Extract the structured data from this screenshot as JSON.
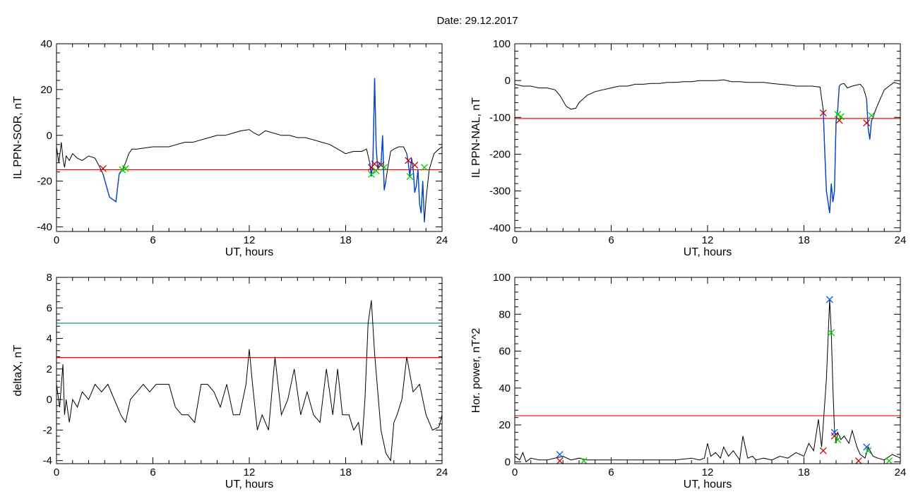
{
  "figure_title": "Date:  29.12.2017",
  "colors": {
    "trace": "#000000",
    "threshold_red": "#ff0000",
    "threshold_teal": "#008b8b",
    "highlight_blue": "#0044cc",
    "marker_red": "#cc0000",
    "marker_green": "#00cc00",
    "marker_blue": "#0055ff"
  },
  "chart_data": [
    {
      "id": "ppn_sor",
      "type": "line",
      "xlabel": "UT, hours",
      "ylabel": "IL PPN-SOR, nT",
      "xlim": [
        0,
        24
      ],
      "ylim": [
        -42,
        40
      ],
      "xticks": [
        0,
        6,
        12,
        18,
        24
      ],
      "yticks": [
        -40,
        -20,
        0,
        20,
        40
      ],
      "threshold": -15,
      "series": [
        {
          "x": [
            0,
            0.15,
            0.3,
            0.4,
            0.5,
            0.6,
            0.8,
            1.0,
            1.3,
            1.6,
            2.0,
            2.4,
            2.7,
            2.9,
            3.1,
            3.3,
            3.5,
            3.7,
            3.9,
            4.1,
            4.3,
            4.5,
            4.7,
            5.0,
            5.5,
            6.0,
            6.5,
            7.0,
            7.5,
            8.0,
            8.5,
            9.0,
            9.5,
            10.0,
            10.5,
            11.0,
            11.5,
            12.0,
            12.3,
            12.6,
            13.0,
            13.5,
            14.0,
            14.5,
            15.0,
            15.5,
            16.0,
            16.5,
            17.0,
            17.5,
            18.0,
            18.5,
            19.0,
            19.3,
            19.5,
            19.6,
            19.7,
            19.8,
            19.9,
            20.0,
            20.1,
            20.2,
            20.3,
            20.4,
            20.5,
            20.6,
            20.8,
            21.0,
            21.3,
            21.6,
            21.8,
            21.9,
            22.0,
            22.1,
            22.2,
            22.3,
            22.4,
            22.5,
            22.6,
            22.7,
            22.8,
            22.9,
            23.0,
            23.2,
            23.5,
            23.8,
            24.0
          ],
          "y": [
            -5,
            -12,
            -3,
            -10,
            -14,
            -9,
            -11,
            -8,
            -10,
            -11,
            -9,
            -10,
            -14,
            -17,
            -22,
            -27,
            -28,
            -29,
            -17,
            -15,
            -12,
            -8,
            -6,
            -6,
            -5.5,
            -5,
            -5,
            -5,
            -4,
            -3,
            -3,
            -2,
            -1,
            0,
            0,
            1,
            2,
            2.5,
            1,
            0,
            2,
            1,
            0,
            0,
            -1,
            -1,
            -2,
            -3,
            -4,
            -6,
            -8,
            -7,
            -7,
            -6,
            -12,
            -18,
            -10,
            25,
            -5,
            -15,
            -12,
            -13,
            0,
            -24,
            -20,
            -15,
            -7,
            -6,
            -5,
            -5,
            -8,
            -12,
            -18,
            -10,
            -14,
            -25,
            -22,
            -15,
            -30,
            -34,
            -20,
            -38,
            -28,
            -15,
            -8,
            -6,
            -5
          ]
        }
      ],
      "highlight_ranges": [
        [
          2.8,
          4.2
        ],
        [
          19.4,
          20.5
        ],
        [
          21.8,
          22.9
        ]
      ],
      "markers_red": [
        [
          2.9,
          -14.5
        ],
        [
          19.6,
          -14
        ],
        [
          19.8,
          -12.5
        ],
        [
          20.2,
          -13
        ],
        [
          21.9,
          -11
        ],
        [
          22.3,
          -13
        ]
      ],
      "markers_green": [
        [
          4.1,
          -15
        ],
        [
          4.3,
          -14.5
        ],
        [
          19.6,
          -17
        ],
        [
          19.9,
          -15.5
        ],
        [
          20.4,
          -14
        ],
        [
          22.0,
          -18
        ],
        [
          22.9,
          -14
        ]
      ]
    },
    {
      "id": "ppn_nal",
      "type": "line",
      "xlabel": "UT, hours",
      "ylabel": "IL PPN-NAL, nT",
      "xlim": [
        0,
        24
      ],
      "ylim": [
        -410,
        100
      ],
      "xticks": [
        0,
        6,
        12,
        18,
        24
      ],
      "yticks": [
        -400,
        -300,
        -200,
        -100,
        0,
        100
      ],
      "threshold": -103,
      "series": [
        {
          "x": [
            0,
            0.5,
            1.0,
            1.5,
            2.0,
            2.5,
            2.8,
            3.0,
            3.2,
            3.5,
            3.8,
            4.0,
            4.5,
            5.0,
            5.5,
            6.0,
            6.5,
            7.0,
            7.5,
            8.0,
            8.5,
            9.0,
            9.5,
            10.0,
            10.5,
            11.0,
            11.5,
            12.0,
            12.5,
            13.0,
            13.5,
            14.0,
            14.5,
            15.0,
            15.5,
            16.0,
            16.5,
            17.0,
            17.5,
            18.0,
            18.5,
            19.0,
            19.2,
            19.3,
            19.4,
            19.5,
            19.6,
            19.7,
            19.8,
            19.9,
            20.0,
            20.1,
            20.2,
            20.3,
            20.5,
            20.7,
            21.0,
            21.3,
            21.5,
            21.7,
            21.9,
            22.0,
            22.1,
            22.2,
            22.3,
            22.5,
            22.8,
            23.0,
            23.3,
            23.6,
            24.0
          ],
          "y": [
            -10,
            -15,
            -15,
            -20,
            -20,
            -25,
            -40,
            -55,
            -70,
            -78,
            -75,
            -60,
            -40,
            -30,
            -25,
            -20,
            -15,
            -15,
            -10,
            -10,
            -8,
            -8,
            -5,
            -5,
            -3,
            -3,
            0,
            0,
            0,
            2,
            -3,
            -3,
            -5,
            -5,
            -5,
            -8,
            -10,
            -12,
            -15,
            -15,
            -15,
            -18,
            -80,
            -200,
            -300,
            -330,
            -360,
            -280,
            -330,
            -300,
            -110,
            -80,
            -15,
            -10,
            -8,
            -20,
            -15,
            -12,
            -10,
            -20,
            -50,
            -130,
            -160,
            -110,
            -100,
            -75,
            -45,
            -25,
            -15,
            -5,
            -10
          ]
        }
      ],
      "highlight_ranges": [
        [
          19.2,
          20.2
        ],
        [
          21.9,
          22.3
        ]
      ],
      "markers_red": [
        [
          19.2,
          -88
        ],
        [
          20.2,
          -108
        ],
        [
          21.9,
          -115
        ]
      ],
      "markers_green": [
        [
          20.1,
          -92
        ],
        [
          20.3,
          -98
        ],
        [
          22.2,
          -95
        ]
      ]
    },
    {
      "id": "deltax",
      "type": "line",
      "xlabel": "UT, hours",
      "ylabel": "deltaX, nT",
      "xlim": [
        0,
        24
      ],
      "ylim": [
        -4.2,
        8
      ],
      "xticks": [
        0,
        6,
        12,
        18,
        24
      ],
      "yticks": [
        -4,
        -2,
        0,
        2,
        4,
        6,
        8
      ],
      "threshold_high": 5,
      "threshold": 2.75,
      "series": [
        {
          "x": [
            0,
            0.2,
            0.4,
            0.5,
            0.6,
            0.8,
            1.0,
            1.3,
            1.6,
            2.0,
            2.4,
            2.8,
            3.2,
            3.6,
            4.0,
            4.3,
            4.6,
            5.0,
            5.4,
            5.8,
            6.2,
            6.6,
            7.0,
            7.4,
            7.8,
            8.2,
            8.6,
            9.0,
            9.4,
            9.8,
            10.2,
            10.6,
            11.0,
            11.4,
            11.8,
            12.0,
            12.2,
            12.5,
            12.8,
            13.2,
            13.6,
            14.0,
            14.4,
            14.8,
            15.2,
            15.6,
            16.0,
            16.4,
            16.8,
            17.2,
            17.5,
            17.8,
            18.2,
            18.5,
            18.8,
            19.0,
            19.2,
            19.4,
            19.6,
            19.8,
            20.0,
            20.2,
            20.5,
            20.8,
            21.0,
            21.2,
            21.5,
            21.8,
            22.2,
            22.6,
            23.0,
            23.4,
            23.8,
            24.0
          ],
          "y": [
            1,
            -0.5,
            2.3,
            -1,
            0,
            -1.5,
            0,
            -0.5,
            0.5,
            0,
            1,
            0.5,
            1,
            0,
            -1,
            -1.5,
            0,
            0.5,
            1,
            0.5,
            1,
            1,
            1,
            -0.5,
            -1,
            -1,
            -1.5,
            1,
            1,
            0.5,
            -0.5,
            1,
            -1,
            -1,
            1,
            3.3,
            1,
            -2,
            -1,
            -2,
            2.8,
            -1,
            0,
            2,
            -1,
            0.5,
            -1,
            -1.5,
            2,
            -1,
            2,
            -1,
            -1,
            -2,
            -1.5,
            -3,
            0,
            5,
            6.5,
            3,
            0.5,
            -2,
            -3.5,
            -4,
            -1.5,
            -1,
            0,
            2.8,
            0.5,
            1,
            -1,
            -2,
            -1.8,
            -1
          ]
        }
      ]
    },
    {
      "id": "hor_power",
      "type": "line",
      "xlabel": "UT, hours",
      "ylabel": "Hor. power, nT^2",
      "xlim": [
        0,
        24
      ],
      "ylim": [
        -1,
        100
      ],
      "xticks": [
        0,
        6,
        12,
        18,
        24
      ],
      "yticks": [
        0,
        20,
        40,
        60,
        80,
        100
      ],
      "threshold": 25,
      "series": [
        {
          "x": [
            0,
            0.3,
            0.5,
            0.7,
            1.0,
            1.5,
            2.0,
            2.5,
            3.0,
            3.5,
            4.0,
            4.5,
            5.0,
            6.0,
            7.0,
            8.0,
            9.0,
            10.0,
            11.0,
            11.5,
            11.8,
            12.0,
            12.2,
            12.5,
            12.8,
            13.0,
            13.3,
            13.6,
            14.0,
            14.2,
            14.5,
            14.8,
            15.0,
            15.5,
            16.0,
            16.5,
            17.0,
            17.5,
            18.0,
            18.3,
            18.6,
            18.9,
            19.1,
            19.2,
            19.4,
            19.6,
            19.7,
            19.8,
            19.9,
            20.0,
            20.1,
            20.3,
            20.5,
            20.8,
            21.0,
            21.3,
            21.5,
            21.8,
            22.0,
            22.3,
            22.6,
            23.0,
            23.5,
            24.0
          ],
          "y": [
            3,
            1,
            5,
            0,
            2,
            1,
            1,
            2,
            3,
            1,
            2,
            1,
            1,
            1,
            1,
            1,
            1,
            1,
            2,
            1,
            2,
            10,
            3,
            5,
            2,
            8,
            3,
            6,
            1,
            14,
            2,
            3,
            1,
            2,
            1,
            3,
            2,
            5,
            3,
            10,
            6,
            23,
            8,
            20,
            45,
            88,
            70,
            40,
            18,
            10,
            16,
            12,
            14,
            10,
            17,
            8,
            4,
            2,
            8,
            3,
            2,
            1,
            4,
            2
          ]
        }
      ],
      "markers_blue": [
        [
          2.8,
          4
        ],
        [
          19.6,
          88
        ],
        [
          19.9,
          16
        ],
        [
          21.9,
          8
        ]
      ],
      "markers_red": [
        [
          2.8,
          0.5
        ],
        [
          19.2,
          6
        ],
        [
          19.9,
          14
        ],
        [
          21.4,
          0.5
        ]
      ],
      "markers_green": [
        [
          4.3,
          0.5
        ],
        [
          19.7,
          70
        ],
        [
          20.1,
          12
        ],
        [
          22.0,
          6
        ],
        [
          23.3,
          0.5
        ]
      ]
    }
  ]
}
